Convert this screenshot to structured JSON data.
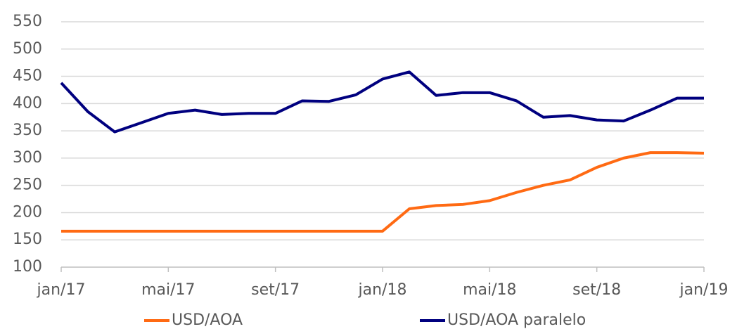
{
  "chart_data": {
    "type": "line",
    "categories": [
      "jan/17",
      null,
      null,
      null,
      "mai/17",
      null,
      null,
      null,
      "set/17",
      null,
      null,
      null,
      "jan/18",
      null,
      null,
      null,
      "mai/18",
      null,
      null,
      null,
      "set/18",
      null,
      null,
      null,
      "jan/19"
    ],
    "series": [
      {
        "name": "USD/AOA",
        "color": "#ff6a13",
        "values": [
          166,
          166,
          166,
          166,
          166,
          166,
          166,
          166,
          166,
          166,
          166,
          166,
          166,
          207,
          213,
          215,
          222,
          237,
          250,
          260,
          283,
          300,
          310,
          310,
          309
        ]
      },
      {
        "name": "USD/AOA paralelo",
        "color": "#00007f",
        "values": [
          438,
          385,
          348,
          365,
          382,
          388,
          380,
          382,
          382,
          405,
          404,
          416,
          445,
          458,
          415,
          420,
          420,
          405,
          375,
          378,
          370,
          368,
          388,
          410,
          410
        ]
      }
    ],
    "ylim": [
      100,
      550
    ],
    "yticks": [
      100,
      150,
      200,
      250,
      300,
      350,
      400,
      450,
      500,
      550
    ],
    "grid": true,
    "legend": "bottom"
  }
}
